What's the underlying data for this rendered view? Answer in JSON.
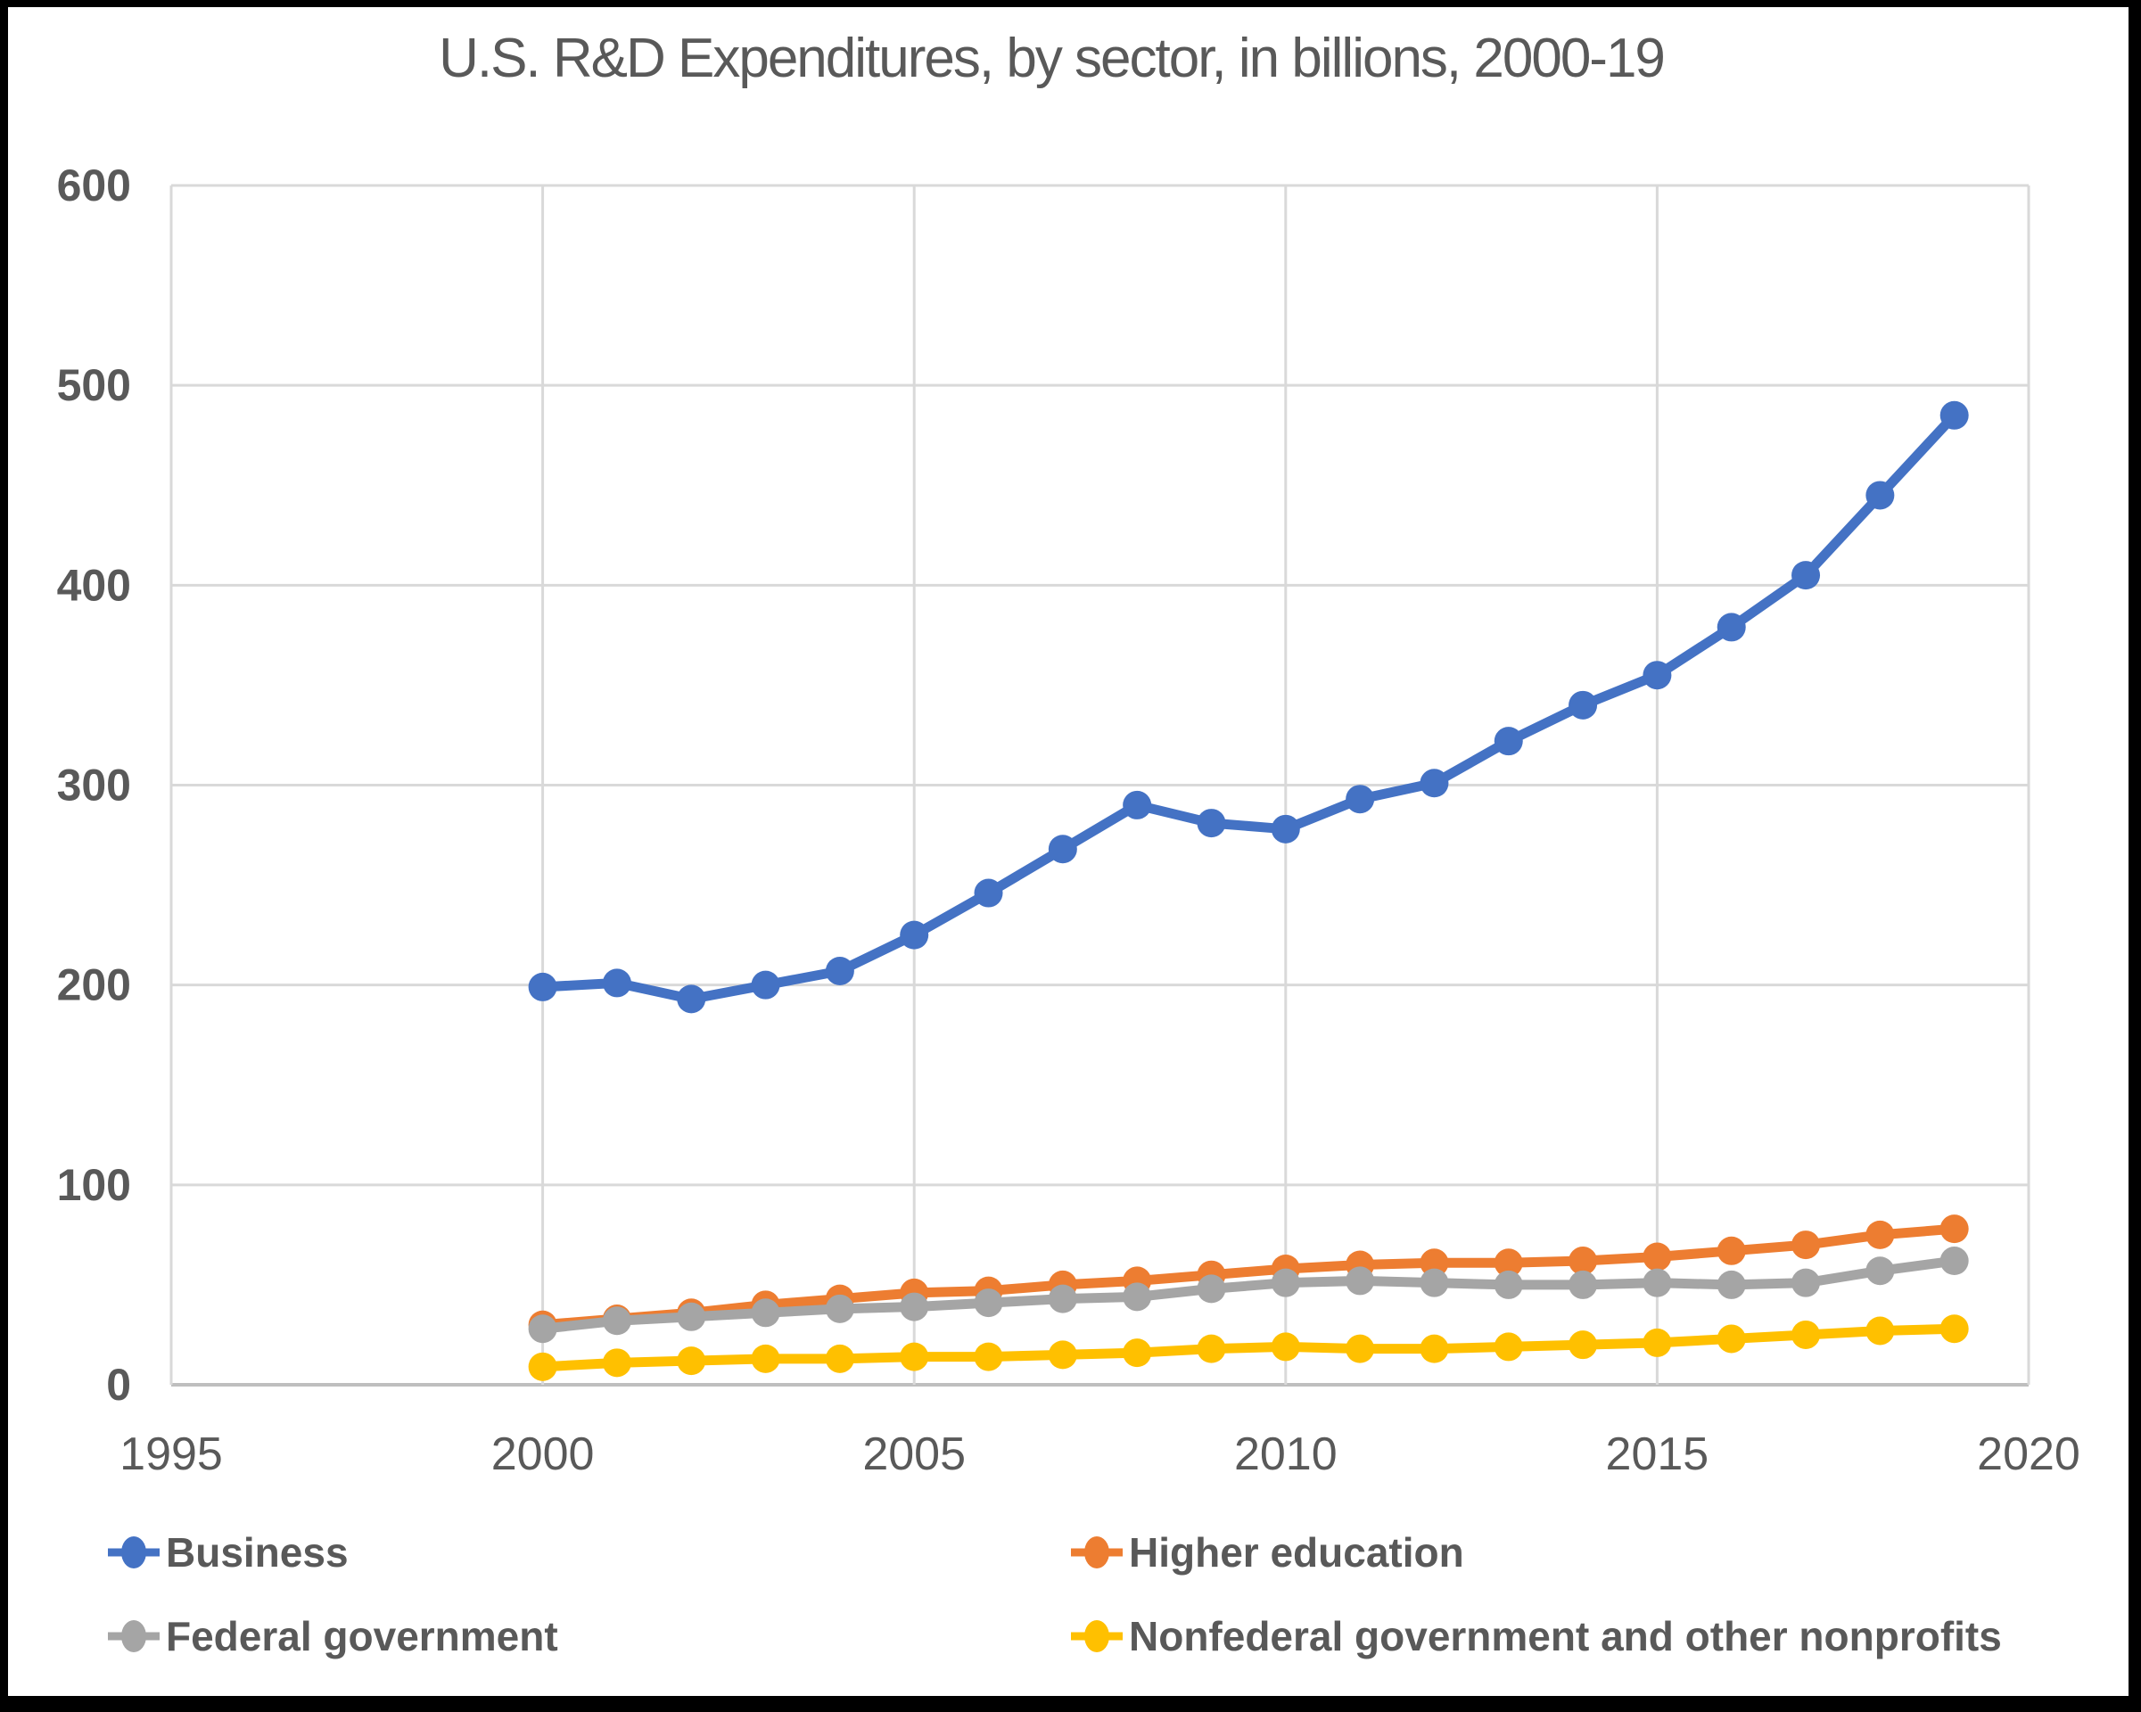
{
  "chart_data": {
    "type": "line",
    "title": "U.S. R&D Expenditures, by sector, in billions, 2000-19",
    "xlabel": "",
    "ylabel": "",
    "x": [
      2000,
      2001,
      2002,
      2003,
      2004,
      2005,
      2006,
      2007,
      2008,
      2009,
      2010,
      2011,
      2012,
      2013,
      2014,
      2015,
      2016,
      2017,
      2018,
      2019
    ],
    "series": [
      {
        "name": "Business",
        "color": "#4472C4",
        "values": [
          199,
          201,
          193,
          200,
          207,
          225,
          246,
          268,
          290,
          281,
          278,
          293,
          301,
          322,
          340,
          355,
          379,
          405,
          445,
          485
        ]
      },
      {
        "name": "Higher education",
        "color": "#ED7D31",
        "values": [
          30,
          33,
          36,
          40,
          43,
          46,
          47,
          50,
          52,
          55,
          58,
          60,
          61,
          61,
          62,
          64,
          67,
          70,
          75,
          78
        ]
      },
      {
        "name": "Federal government",
        "color": "#A5A5A5",
        "values": [
          28,
          32,
          34,
          36,
          38,
          39,
          41,
          43,
          44,
          48,
          51,
          52,
          51,
          50,
          50,
          51,
          50,
          51,
          57,
          62
        ]
      },
      {
        "name": "Nonfederal government and other nonprofits",
        "color": "#FFC000",
        "values": [
          9,
          11,
          12,
          13,
          13,
          14,
          14,
          15,
          16,
          18,
          19,
          18,
          18,
          19,
          20,
          21,
          23,
          25,
          27,
          28
        ]
      }
    ],
    "xlim": [
      1995,
      2020
    ],
    "ylim": [
      0,
      600
    ],
    "x_ticks": [
      1995,
      2000,
      2005,
      2010,
      2015,
      2020
    ],
    "y_ticks": [
      0,
      100,
      200,
      300,
      400,
      500,
      600
    ],
    "grid": true,
    "legend_position": "bottom",
    "colors": {
      "gridline": "#D9D9D9",
      "axis_line": "#BFBFBF",
      "text": "#595959",
      "background": "#FFFFFF",
      "frame": "#000000"
    }
  }
}
